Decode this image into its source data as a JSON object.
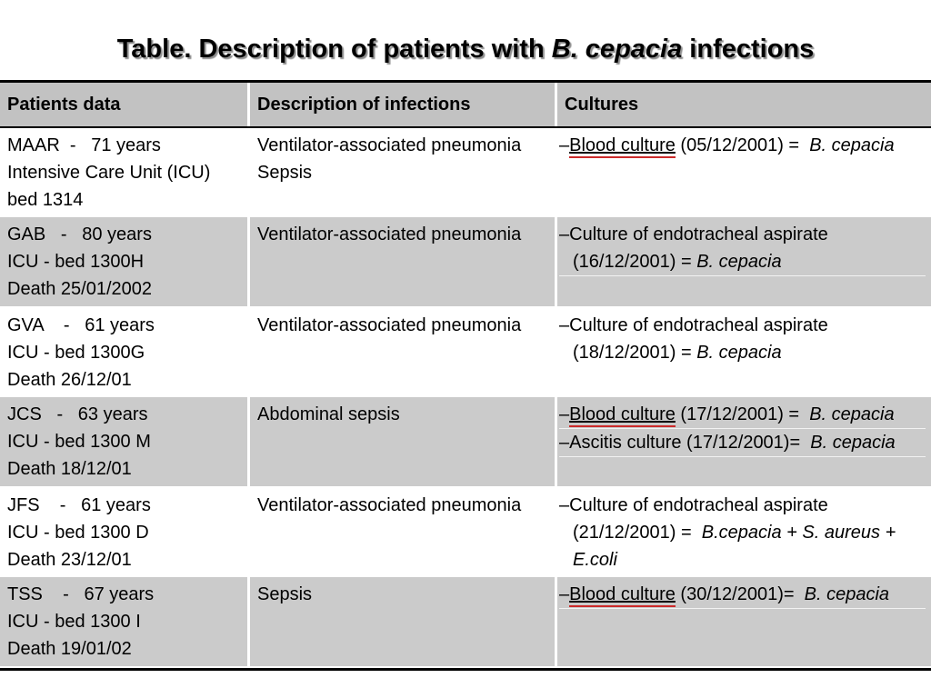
{
  "title": {
    "segments": [
      {
        "t": "Table. Description of patients with "
      },
      {
        "t": "B. cepacia",
        "s": "i"
      },
      {
        "t": " infections"
      }
    ]
  },
  "colors": {
    "header_bg": "#c2c2c2",
    "shaded_row_bg": "#cbcbcb",
    "table_border": "#000000",
    "term_underline_red": "#cc2a2a"
  },
  "table": {
    "headers": [
      "Patients data",
      "Description of infections",
      "Cultures"
    ],
    "rows": [
      {
        "shaded": false,
        "patient": [
          "MAAR  -   71 years",
          "Intensive Care Unit (ICU)",
          "bed 1314"
        ],
        "infections": [
          "Ventilator-associated pneumonia",
          "Sepsis"
        ],
        "cultures": [
          [
            {
              "t": "–"
            },
            {
              "t": "Blood culture",
              "s": "u"
            },
            {
              "t": " (05/12/2001) =  "
            },
            {
              "t": "B. cepacia",
              "s": "i"
            }
          ]
        ]
      },
      {
        "shaded": true,
        "patient": [
          "GAB   -   80 years",
          "ICU - bed 1300H",
          "Death 25/01/2002"
        ],
        "infections": [
          "Ventilator-associated pneumonia"
        ],
        "cultures": [
          [
            {
              "t": "–Culture of endotracheal aspirate\n(16/12/2001) = "
            },
            {
              "t": "B. cepacia",
              "s": "i"
            }
          ]
        ]
      },
      {
        "shaded": false,
        "patient": [
          "GVA    -   61 years",
          "ICU - bed 1300G",
          "Death 26/12/01"
        ],
        "infections": [
          "Ventilator-associated pneumonia"
        ],
        "cultures": [
          [
            {
              "t": "–Culture of endotracheal aspirate\n(18/12/2001) = "
            },
            {
              "t": "B. cepacia",
              "s": "i"
            }
          ]
        ]
      },
      {
        "shaded": true,
        "patient": [
          "JCS   -   63 years",
          "ICU - bed 1300 M",
          "Death 18/12/01"
        ],
        "infections": [
          "Abdominal sepsis"
        ],
        "cultures": [
          [
            {
              "t": "–"
            },
            {
              "t": "Blood culture",
              "s": "u"
            },
            {
              "t": " (17/12/2001) =  "
            },
            {
              "t": "B. cepacia",
              "s": "i"
            }
          ],
          [
            {
              "t": "–Ascitis culture (17/12/2001)=  "
            },
            {
              "t": "B. cepacia",
              "s": "i"
            }
          ]
        ]
      },
      {
        "shaded": false,
        "patient": [
          "JFS    -   61 years",
          "ICU - bed 1300 D",
          "Death 23/12/01"
        ],
        "infections": [
          "Ventilator-associated pneumonia"
        ],
        "cultures": [
          [
            {
              "t": "–Culture of endotracheal aspirate\n(21/12/2001) =  "
            },
            {
              "t": "B.cepacia + S. aureus +\nE.coli",
              "s": "i"
            }
          ]
        ]
      },
      {
        "shaded": true,
        "patient": [
          "TSS    -   67 years",
          "ICU - bed 1300 I",
          "Death 19/01/02"
        ],
        "infections": [
          "Sepsis"
        ],
        "cultures": [
          [
            {
              "t": "–"
            },
            {
              "t": "Blood culture",
              "s": "u"
            },
            {
              "t": " (30/12/2001)=  "
            },
            {
              "t": "B. cepacia",
              "s": "i"
            }
          ]
        ]
      }
    ]
  }
}
